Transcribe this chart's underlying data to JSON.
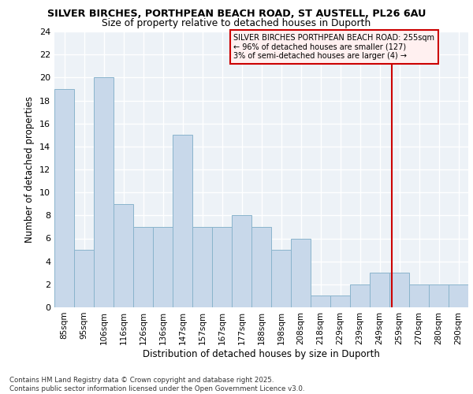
{
  "title1": "SILVER BIRCHES, PORTHPEAN BEACH ROAD, ST AUSTELL, PL26 6AU",
  "title2": "Size of property relative to detached houses in Duporth",
  "xlabel": "Distribution of detached houses by size in Duporth",
  "ylabel": "Number of detached properties",
  "bar_labels": [
    "85sqm",
    "95sqm",
    "106sqm",
    "116sqm",
    "126sqm",
    "136sqm",
    "147sqm",
    "157sqm",
    "167sqm",
    "177sqm",
    "188sqm",
    "198sqm",
    "208sqm",
    "218sqm",
    "229sqm",
    "239sqm",
    "249sqm",
    "259sqm",
    "270sqm",
    "280sqm",
    "290sqm"
  ],
  "bar_values": [
    19,
    5,
    20,
    9,
    7,
    7,
    15,
    7,
    7,
    8,
    7,
    5,
    6,
    1,
    1,
    2,
    3,
    3,
    2,
    2,
    2
  ],
  "bar_color": "#c8d8ea",
  "bar_edgecolor": "#8ab4cc",
  "ylim": [
    0,
    24
  ],
  "yticks": [
    0,
    2,
    4,
    6,
    8,
    10,
    12,
    14,
    16,
    18,
    20,
    22,
    24
  ],
  "property_line_color": "#cc0000",
  "annotation_text": "SILVER BIRCHES PORTHPEAN BEACH ROAD: 255sqm\n← 96% of detached houses are smaller (127)\n3% of semi-detached houses are larger (4) →",
  "annotation_box_facecolor": "#fff0f0",
  "annotation_box_edgecolor": "#cc0000",
  "footer1": "Contains HM Land Registry data © Crown copyright and database right 2025.",
  "footer2": "Contains public sector information licensed under the Open Government Licence v3.0.",
  "bg_color": "#edf2f7",
  "grid_color": "#ffffff"
}
